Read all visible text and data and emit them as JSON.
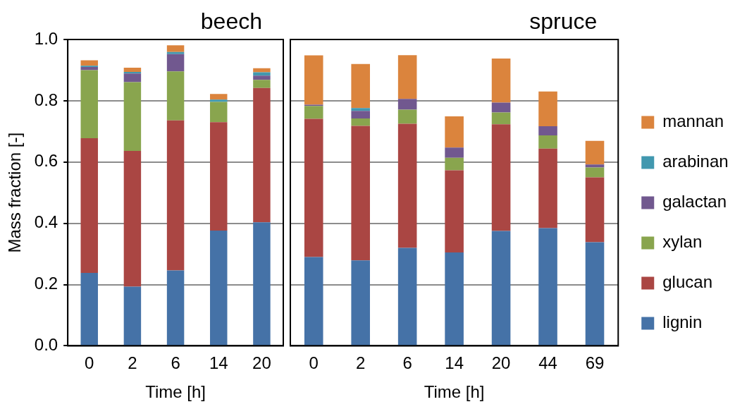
{
  "chart_data": [
    {
      "type": "bar",
      "title": "beech",
      "xlabel": "Time [h]",
      "ylabel": "Mass fraction [-]",
      "categories": [
        "0",
        "2",
        "6",
        "14",
        "20"
      ],
      "stacked": true,
      "ylim": [
        0,
        1
      ],
      "yticks": [
        {
          "value": 0,
          "label": "0.0"
        },
        {
          "value": 0.2,
          "label": "0.2"
        },
        {
          "value": 0.4,
          "label": "0.4"
        },
        {
          "value": 0.6,
          "label": "0.6"
        },
        {
          "value": 0.8,
          "label": "0.8"
        },
        {
          "value": 1,
          "label": "1.0"
        }
      ],
      "grid": "y",
      "legend": false,
      "series": [
        {
          "color": "#4572a7",
          "values": [
            0.238,
            0.193,
            0.246,
            0.376,
            0.403
          ]
        },
        {
          "color": "#aa4643",
          "values": [
            0.44,
            0.443,
            0.49,
            0.354,
            0.439
          ]
        },
        {
          "color": "#89a54e",
          "values": [
            0.222,
            0.225,
            0.16,
            0.066,
            0.026
          ]
        },
        {
          "color": "#71588f",
          "values": [
            0.01,
            0.028,
            0.056,
            0,
            0.014
          ]
        },
        {
          "color": "#4198af",
          "values": [
            0.004,
            0.005,
            0.007,
            0.008,
            0.011
          ]
        },
        {
          "color": "#db843d",
          "values": [
            0.018,
            0.014,
            0.022,
            0.018,
            0.013
          ]
        }
      ]
    },
    {
      "type": "bar",
      "title": "spruce",
      "xlabel": "Time [h]",
      "categories": [
        "0",
        "2",
        "6",
        "14",
        "20",
        "44",
        "69"
      ],
      "stacked": true,
      "ylim": [
        0,
        1
      ],
      "yticks": [
        {
          "value": 0,
          "label": null
        },
        {
          "value": 0.2,
          "label": null
        },
        {
          "value": 0.4,
          "label": null
        },
        {
          "value": 0.6,
          "label": null
        },
        {
          "value": 0.8,
          "label": null
        },
        {
          "value": 1,
          "label": null
        }
      ],
      "grid": "y",
      "legend": "right",
      "tick_labels": "x",
      "series": [
        {
          "name": "lignin",
          "color": "#4572a7",
          "values": [
            0.29,
            0.279,
            0.32,
            0.305,
            0.375,
            0.384,
            0.338
          ]
        },
        {
          "name": "glucan",
          "color": "#aa4643",
          "values": [
            0.451,
            0.439,
            0.405,
            0.268,
            0.348,
            0.26,
            0.212
          ]
        },
        {
          "name": "xylan",
          "color": "#89a54e",
          "values": [
            0.042,
            0.024,
            0.046,
            0.041,
            0.039,
            0.043,
            0.032
          ]
        },
        {
          "name": "galactan",
          "color": "#71588f",
          "values": [
            0.004,
            0.025,
            0.035,
            0.033,
            0.032,
            0.03,
            0.01
          ]
        },
        {
          "name": "arabinan",
          "color": "#4198af",
          "values": [
            0,
            0.009,
            0,
            0,
            0,
            0,
            0
          ]
        },
        {
          "name": "mannan",
          "color": "#db843d",
          "values": [
            0.161,
            0.144,
            0.143,
            0.102,
            0.144,
            0.113,
            0.077
          ]
        }
      ]
    }
  ]
}
